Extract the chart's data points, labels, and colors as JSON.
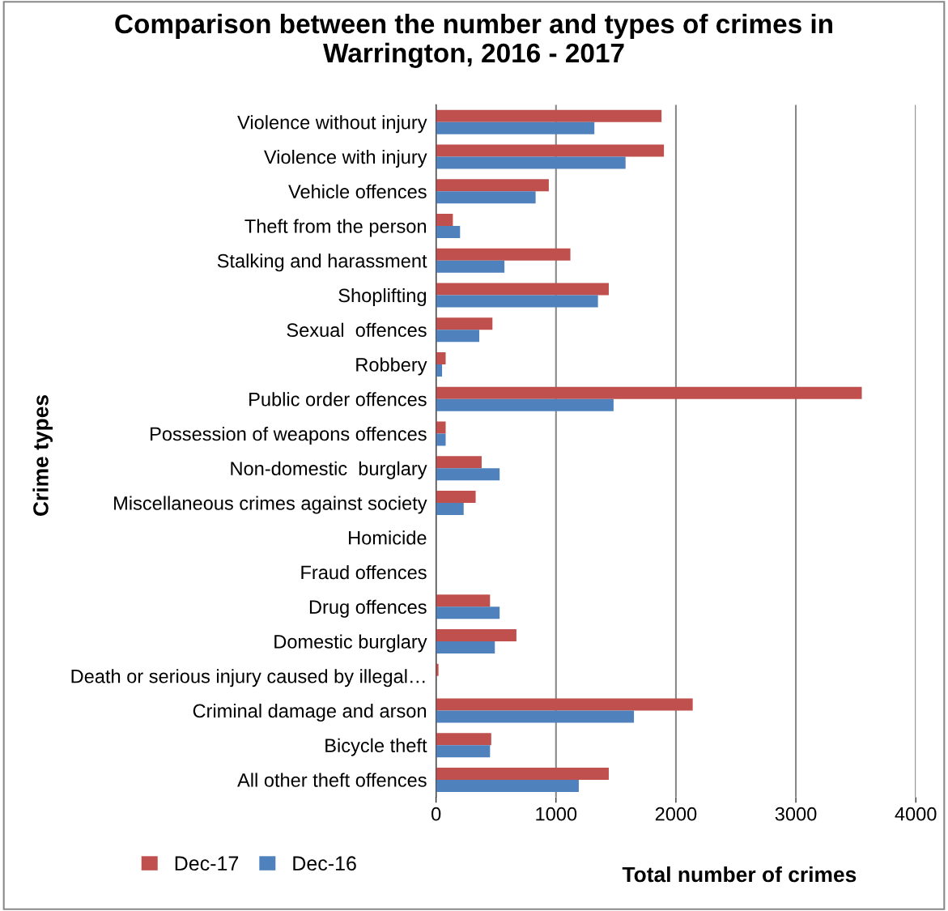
{
  "chart_data": {
    "type": "bar",
    "orientation": "horizontal",
    "title": "Comparison between the number and types of crimes in\nWarrington, 2016 - 2017",
    "xlabel": "Total number of crimes",
    "ylabel": "Crime types",
    "categories": [
      "Violence without injury",
      "Violence with injury",
      "Vehicle offences",
      "Theft from the person",
      "Stalking and harassment",
      "Shoplifting",
      "Sexual  offences",
      "Robbery",
      "Public order offences",
      "Possession of weapons offences",
      "Non-domestic  burglary",
      "Miscellaneous crimes against society",
      "Homicide",
      "Fraud offences",
      "Drug offences",
      "Domestic burglary",
      "Death or serious injury caused by illegal…",
      "Criminal damage and arson",
      "Bicycle theft",
      "All other theft offences"
    ],
    "series": [
      {
        "name": "Dec-17",
        "color": "#c0504d",
        "values": [
          1880,
          1900,
          940,
          140,
          1120,
          1440,
          470,
          80,
          3550,
          80,
          380,
          330,
          0,
          0,
          450,
          670,
          20,
          2140,
          460,
          1440
        ]
      },
      {
        "name": "Dec-16",
        "color": "#4f81bd",
        "values": [
          1320,
          1580,
          830,
          200,
          570,
          1350,
          360,
          50,
          1480,
          80,
          530,
          230,
          0,
          0,
          530,
          490,
          0,
          1650,
          450,
          1190
        ]
      }
    ],
    "xlim": [
      0,
      4000
    ],
    "xticks": [
      0,
      1000,
      2000,
      3000,
      4000
    ],
    "grid": "x",
    "legend": "bottom left"
  }
}
